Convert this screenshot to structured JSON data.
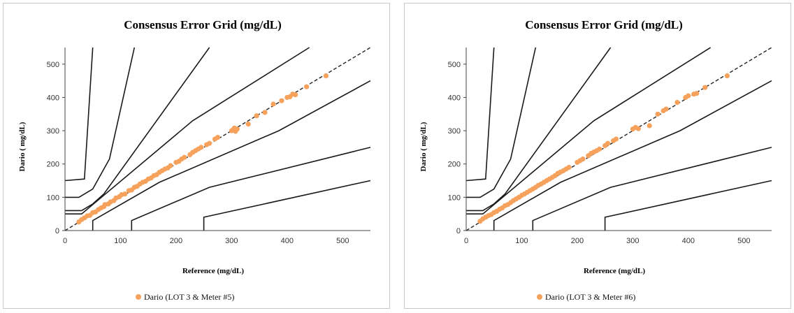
{
  "chart_data": [
    {
      "type": "scatter",
      "title": "Consensus Error Grid (mg/dL)",
      "xlabel": "Reference  (mg/dL)",
      "ylabel": "Dario ( mg/dL)",
      "xlim": [
        0,
        550
      ],
      "ylim": [
        0,
        550
      ],
      "xticks": [
        "0",
        "100",
        "200",
        "300",
        "400",
        "500"
      ],
      "yticks": [
        "0",
        "100",
        "200",
        "300",
        "400",
        "500"
      ],
      "legend": "bottom",
      "grid": false,
      "point_color": "#f7a25c",
      "zone_line_color": "#1a1a1a",
      "zone_lines": [
        [
          [
            0,
            150
          ],
          [
            35,
            155
          ],
          [
            50,
            550
          ]
        ],
        [
          [
            0,
            100
          ],
          [
            25,
            100
          ],
          [
            50,
            125
          ],
          [
            80,
            215
          ],
          [
            125,
            550
          ]
        ],
        [
          [
            0,
            60
          ],
          [
            30,
            60
          ],
          [
            50,
            80
          ],
          [
            70,
            110
          ],
          [
            260,
            550
          ]
        ],
        [
          [
            0,
            50
          ],
          [
            30,
            50
          ],
          [
            230,
            330
          ],
          [
            440,
            550
          ]
        ],
        [
          [
            50,
            0
          ],
          [
            50,
            30
          ],
          [
            170,
            145
          ],
          [
            385,
            300
          ],
          [
            550,
            450
          ]
        ],
        [
          [
            120,
            0
          ],
          [
            120,
            30
          ],
          [
            260,
            130
          ],
          [
            550,
            250
          ]
        ],
        [
          [
            250,
            0
          ],
          [
            250,
            40
          ],
          [
            550,
            150
          ]
        ]
      ],
      "identity_line": [
        [
          0,
          0
        ],
        [
          550,
          550
        ]
      ],
      "series": [
        {
          "name": "Dario (LOT 3 & Meter #5)",
          "points": [
            [
              25,
              26
            ],
            [
              30,
              33
            ],
            [
              35,
              38
            ],
            [
              40,
              44
            ],
            [
              45,
              46
            ],
            [
              50,
              54
            ],
            [
              55,
              56
            ],
            [
              60,
              63
            ],
            [
              65,
              68
            ],
            [
              70,
              72
            ],
            [
              72,
              78
            ],
            [
              78,
              80
            ],
            [
              82,
              86
            ],
            [
              88,
              90
            ],
            [
              92,
              98
            ],
            [
              98,
              102
            ],
            [
              102,
              108
            ],
            [
              108,
              110
            ],
            [
              115,
              120
            ],
            [
              120,
              122
            ],
            [
              125,
              130
            ],
            [
              130,
              133
            ],
            [
              135,
              140
            ],
            [
              140,
              145
            ],
            [
              145,
              148
            ],
            [
              150,
              155
            ],
            [
              155,
              158
            ],
            [
              160,
              165
            ],
            [
              165,
              168
            ],
            [
              170,
              175
            ],
            [
              175,
              180
            ],
            [
              180,
              185
            ],
            [
              185,
              188
            ],
            [
              190,
              195
            ],
            [
              200,
              205
            ],
            [
              205,
              208
            ],
            [
              210,
              215
            ],
            [
              215,
              220
            ],
            [
              225,
              228
            ],
            [
              230,
              235
            ],
            [
              235,
              240
            ],
            [
              240,
              245
            ],
            [
              245,
              250
            ],
            [
              255,
              258
            ],
            [
              260,
              262
            ],
            [
              270,
              275
            ],
            [
              275,
              280
            ],
            [
              300,
              300
            ],
            [
              303,
              303
            ],
            [
              305,
              308
            ],
            [
              307,
              298
            ],
            [
              310,
              305
            ],
            [
              330,
              320
            ],
            [
              345,
              345
            ],
            [
              360,
              355
            ],
            [
              375,
              380
            ],
            [
              390,
              390
            ],
            [
              400,
              400
            ],
            [
              405,
              402
            ],
            [
              410,
              410
            ],
            [
              415,
              408
            ],
            [
              435,
              432
            ],
            [
              470,
              465
            ]
          ]
        },
        {
          "name": "Dario (LOT 3 & Meter #6)",
          "points": [
            [
              25,
              28
            ],
            [
              30,
              35
            ],
            [
              35,
              40
            ],
            [
              40,
              45
            ],
            [
              45,
              48
            ],
            [
              50,
              54
            ],
            [
              55,
              58
            ],
            [
              60,
              64
            ],
            [
              65,
              68
            ],
            [
              70,
              75
            ],
            [
              75,
              78
            ],
            [
              80,
              84
            ],
            [
              85,
              90
            ],
            [
              90,
              95
            ],
            [
              95,
              100
            ],
            [
              100,
              106
            ],
            [
              105,
              110
            ],
            [
              110,
              115
            ],
            [
              115,
              120
            ],
            [
              120,
              125
            ],
            [
              125,
              130
            ],
            [
              130,
              136
            ],
            [
              135,
              140
            ],
            [
              140,
              145
            ],
            [
              145,
              150
            ],
            [
              150,
              155
            ],
            [
              155,
              160
            ],
            [
              160,
              165
            ],
            [
              165,
              172
            ],
            [
              170,
              176
            ],
            [
              175,
              180
            ],
            [
              180,
              185
            ],
            [
              185,
              190
            ],
            [
              200,
              205
            ],
            [
              205,
              210
            ],
            [
              210,
              215
            ],
            [
              220,
              225
            ],
            [
              225,
              232
            ],
            [
              230,
              236
            ],
            [
              235,
              240
            ],
            [
              240,
              245
            ],
            [
              250,
              255
            ],
            [
              255,
              262
            ],
            [
              265,
              270
            ],
            [
              270,
              275
            ],
            [
              300,
              305
            ],
            [
              305,
              310
            ],
            [
              310,
              306
            ],
            [
              330,
              315
            ],
            [
              345,
              350
            ],
            [
              355,
              360
            ],
            [
              360,
              365
            ],
            [
              380,
              385
            ],
            [
              395,
              400
            ],
            [
              400,
              405
            ],
            [
              410,
              410
            ],
            [
              415,
              412
            ],
            [
              430,
              430
            ],
            [
              470,
              465
            ]
          ]
        }
      ]
    }
  ]
}
